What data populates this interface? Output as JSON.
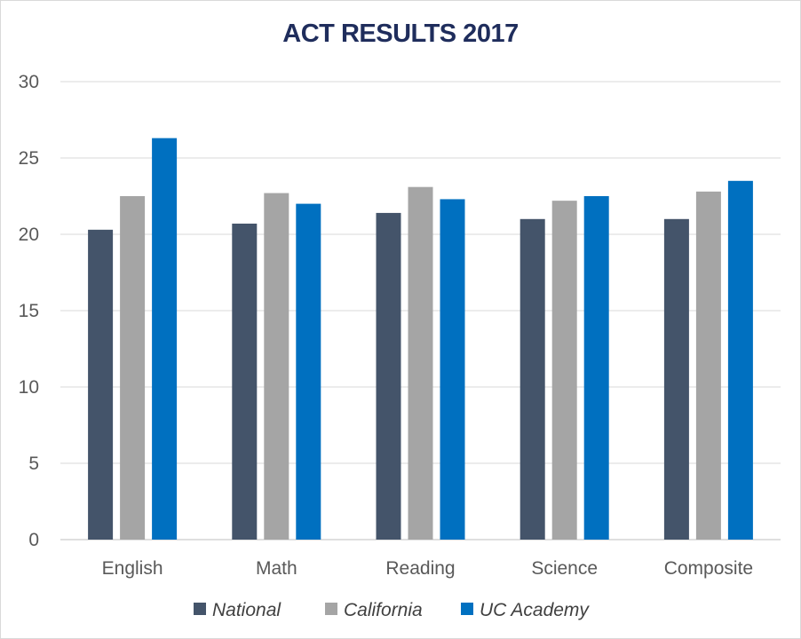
{
  "chart_data": {
    "type": "bar",
    "title": "ACT RESULTS 2017",
    "categories": [
      "English",
      "Math",
      "Reading",
      "Science",
      "Composite"
    ],
    "series": [
      {
        "name": "National",
        "color": "#44546a",
        "values": [
          20.3,
          20.7,
          21.4,
          21.0,
          21.0
        ]
      },
      {
        "name": "California",
        "color": "#a5a5a5",
        "values": [
          22.5,
          22.7,
          23.1,
          22.2,
          22.8
        ]
      },
      {
        "name": "UC Academy",
        "color": "#0070c0",
        "values": [
          26.3,
          22.0,
          22.3,
          22.5,
          23.5
        ]
      }
    ],
    "ylim": [
      0,
      30
    ],
    "yticks": [
      0,
      5,
      10,
      15,
      20,
      25,
      30
    ],
    "grid": true,
    "legend_position": "bottom"
  }
}
